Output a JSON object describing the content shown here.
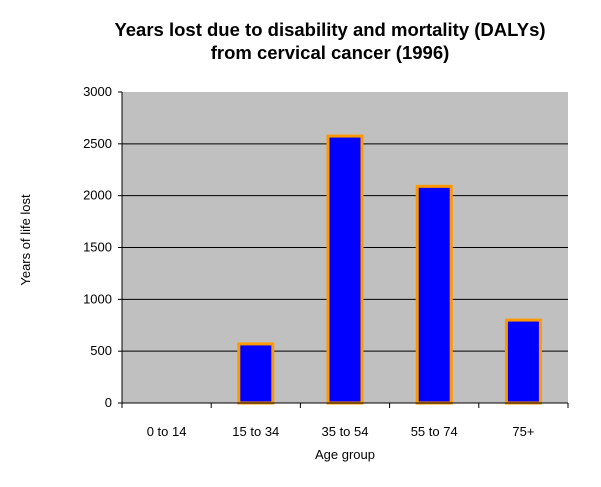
{
  "chart_data": {
    "type": "bar",
    "title_line1": "Years lost due to disability and mortality (DALYs)",
    "title_line2": "from cervical cancer (1996)",
    "xlabel": "Age group",
    "ylabel": "Years of life lost",
    "categories": [
      "0 to 14",
      "15 to 34",
      "35 to 54",
      "55 to 74",
      "75+"
    ],
    "values": [
      0,
      570,
      2575,
      2090,
      800
    ],
    "ylim": [
      0,
      3000
    ],
    "yticks": [
      0,
      500,
      1000,
      1500,
      2000,
      2500,
      3000
    ],
    "grid": true,
    "legend": "none",
    "colors": {
      "bar_fill": "#0000ff",
      "bar_border": "#ff9900",
      "plot_bg": "#c0c0c0",
      "grid": "#000000"
    }
  }
}
